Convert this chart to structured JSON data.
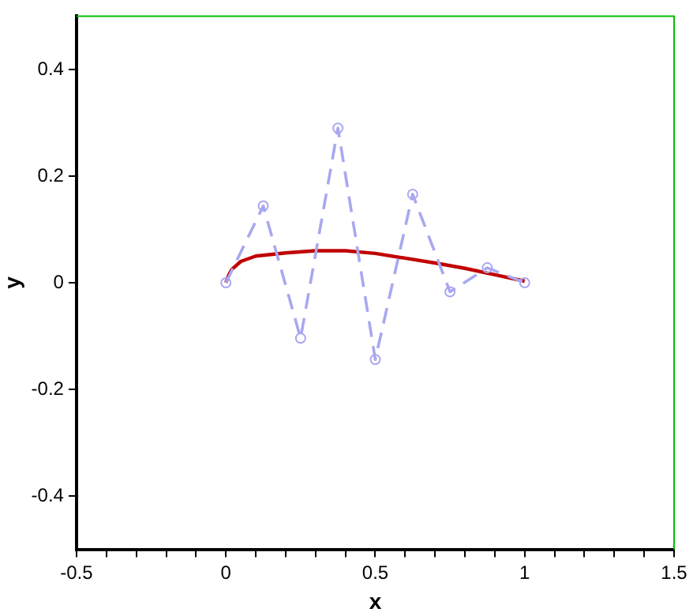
{
  "chart_data": {
    "type": "line",
    "xlabel": "x",
    "ylabel": "y",
    "xlim": [
      -0.5,
      1.5
    ],
    "ylim": [
      -0.5,
      0.5
    ],
    "xticks": [
      -0.5,
      {
        "value": -0.4,
        "label": null
      },
      {
        "value": -0.3,
        "label": null
      },
      {
        "value": -0.2,
        "label": null
      },
      {
        "value": -0.1,
        "label": null
      },
      0,
      {
        "value": 0.1,
        "label": null
      },
      {
        "value": 0.2,
        "label": null
      },
      {
        "value": 0.3,
        "label": null
      },
      {
        "value": 0.4,
        "label": null
      },
      0.5,
      {
        "value": 0.6,
        "label": null
      },
      {
        "value": 0.7,
        "label": null
      },
      {
        "value": 0.8,
        "label": null
      },
      {
        "value": 0.9,
        "label": null
      },
      1,
      {
        "value": 1.1,
        "label": null
      },
      {
        "value": 1.2,
        "label": null
      },
      {
        "value": 1.3,
        "label": null
      },
      {
        "value": 1.4,
        "label": null
      },
      1.5
    ],
    "yticks": [
      -0.4,
      -0.2,
      0,
      0.2,
      0.4
    ],
    "grid": false,
    "legend": false,
    "series": [
      {
        "color": "#a8a8f0",
        "line_style": "dashed",
        "marker": "circle",
        "x": [
          0,
          0.125,
          0.25,
          0.375,
          0.5,
          0.625,
          0.75,
          0.875,
          1
        ],
        "values": [
          0,
          0.144,
          -0.104,
          0.29,
          -0.144,
          0.166,
          -0.017,
          0.028,
          0
        ]
      },
      {
        "color": "#c00000",
        "line_style": "solid",
        "marker": "none",
        "x": [
          0,
          0.01,
          0.02,
          0.05,
          0.1,
          0.2,
          0.3,
          0.4,
          0.5,
          0.6,
          0.7,
          0.8,
          0.9,
          1
        ],
        "values": [
          0,
          0.015,
          0.025,
          0.04,
          0.05,
          0.056,
          0.06,
          0.06,
          0.055,
          0.046,
          0.037,
          0.027,
          0.015,
          0.003
        ]
      }
    ]
  }
}
